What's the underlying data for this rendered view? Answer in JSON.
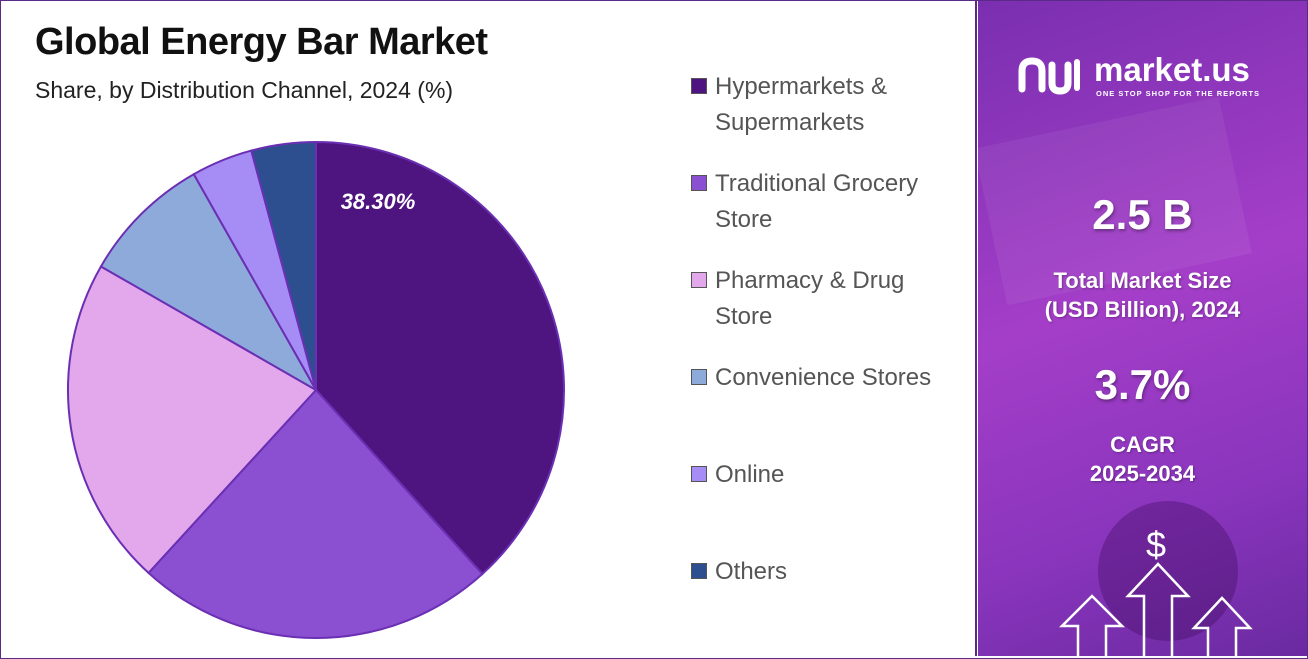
{
  "header": {
    "title": "Global Energy Bar Market",
    "subtitle": "Share, by Distribution Channel, 2024 (%)"
  },
  "chart_data": {
    "type": "pie",
    "title": "Global Energy Bar Market",
    "subtitle": "Share, by Distribution Channel, 2024 (%)",
    "categories": [
      "Hypermarkets & Supermarkets",
      "Traditional Grocery Store",
      "Pharmacy & Drug Store",
      "Convenience Stores",
      "Online",
      "Others"
    ],
    "values": [
      38.3,
      23.5,
      21.5,
      8.5,
      4.0,
      4.2
    ],
    "colors": [
      "#4e1580",
      "#8b4fd1",
      "#e3a8ec",
      "#8eaadb",
      "#a58df5",
      "#2e4f8f"
    ],
    "data_labels": [
      "38.30%",
      "",
      "",
      "",
      "",
      ""
    ],
    "legend_position": "right"
  },
  "legend": [
    {
      "label": "Hypermarkets & Supermarkets",
      "color": "#4e1580"
    },
    {
      "label": "Traditional Grocery Store",
      "color": "#8b4fd1"
    },
    {
      "label": "Pharmacy & Drug Store",
      "color": "#e3a8ec"
    },
    {
      "label": "Convenience Stores",
      "color": "#8eaadb"
    },
    {
      "label": "Online",
      "color": "#a58df5"
    },
    {
      "label": "Others",
      "color": "#2e4f8f"
    }
  ],
  "sidebar": {
    "logo_text": "market.us",
    "logo_tagline": "ONE STOP SHOP FOR THE REPORTS",
    "market_size_value": "2.5 B",
    "market_size_label_line1": "Total Market Size",
    "market_size_label_line2": "(USD Billion), 2024",
    "cagr_value": "3.7%",
    "cagr_label_line1": "CAGR",
    "cagr_label_line2": "2025-2034",
    "dollar_symbol": "$",
    "icons": [
      "logo-mark-icon",
      "dollar-icon",
      "up-arrow-icon"
    ]
  }
}
